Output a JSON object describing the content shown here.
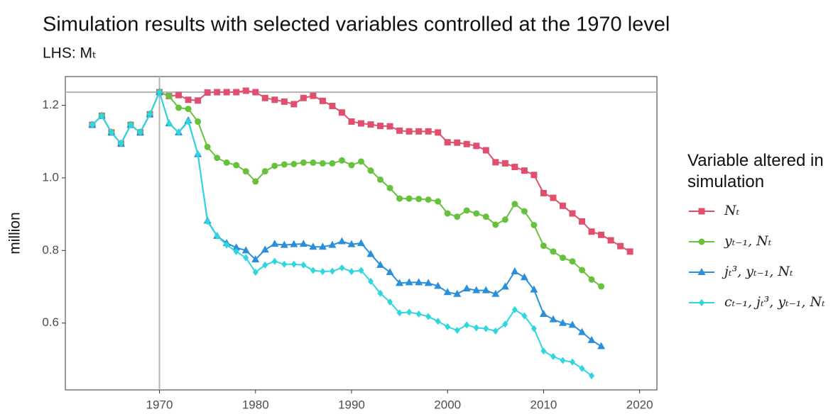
{
  "chart_data": {
    "type": "line",
    "title": "Simulation results with selected variables controlled at the 1970 level",
    "subtitle": "LHS: Mₜ",
    "y_label": "million",
    "legend_title": "Variable altered in simulation",
    "legend_position": "right",
    "grid": false,
    "reference_lines": {
      "x": 1970,
      "y": 1.236
    },
    "x": [
      1963,
      1964,
      1965,
      1966,
      1967,
      1968,
      1969,
      1970,
      1971,
      1972,
      1973,
      1974,
      1975,
      1976,
      1977,
      1978,
      1979,
      1980,
      1981,
      1982,
      1983,
      1984,
      1985,
      1986,
      1987,
      1988,
      1989,
      1990,
      1991,
      1992,
      1993,
      1994,
      1995,
      1996,
      1997,
      1998,
      1999,
      2000,
      2001,
      2002,
      2003,
      2004,
      2005,
      2006,
      2007,
      2008,
      2009,
      2010,
      2011,
      2012,
      2013,
      2014,
      2015,
      2016,
      2017,
      2018,
      2019
    ],
    "xlim": [
      1960.2,
      2021.8
    ],
    "xticks": [
      1970,
      1980,
      1990,
      2000,
      2010,
      2020
    ],
    "ylim": [
      0.416,
      1.279
    ],
    "yticks": [
      0.6,
      0.8,
      {
        "value": 1,
        "label": "1.0"
      },
      1.2
    ],
    "series": [
      {
        "name": "Nₜ",
        "color": "#e0506e",
        "marker": "square",
        "values": [
          1.146,
          1.171,
          1.125,
          1.094,
          1.146,
          1.125,
          1.175,
          1.236,
          1.225,
          1.228,
          1.215,
          1.213,
          1.235,
          1.236,
          1.236,
          1.236,
          1.24,
          1.236,
          1.22,
          1.215,
          1.21,
          1.203,
          1.22,
          1.226,
          1.212,
          1.198,
          1.18,
          1.155,
          1.15,
          1.147,
          1.143,
          1.142,
          1.13,
          1.128,
          1.128,
          1.128,
          1.125,
          1.098,
          1.097,
          1.093,
          1.088,
          1.076,
          1.043,
          1.04,
          1.03,
          1.02,
          1.008,
          0.958,
          0.945,
          0.923,
          0.902,
          0.88,
          0.852,
          0.843,
          0.828,
          0.812,
          0.797
        ]
      },
      {
        "name": "yₜ₋₁, Nₜ",
        "color": "#66c23c",
        "marker": "circle",
        "values": [
          1.146,
          1.171,
          1.125,
          1.094,
          1.146,
          1.125,
          1.175,
          1.236,
          1.225,
          1.193,
          1.19,
          1.155,
          1.085,
          1.055,
          1.042,
          1.035,
          1.018,
          0.99,
          1.018,
          1.033,
          1.037,
          1.038,
          1.042,
          1.042,
          1.04,
          1.04,
          1.048,
          1.035,
          1.045,
          1.02,
          0.995,
          0.972,
          0.943,
          0.943,
          0.942,
          0.94,
          0.935,
          0.902,
          0.893,
          0.91,
          0.902,
          0.893,
          0.871,
          0.885,
          0.928,
          0.908,
          0.87,
          0.813,
          0.797,
          0.78,
          0.77,
          0.746,
          0.72,
          0.701,
          null,
          null,
          null
        ]
      },
      {
        "name": "jₜ³, yₜ₋₁, Nₜ",
        "color": "#2a8fd8",
        "marker": "triangle",
        "values": [
          1.146,
          1.171,
          1.125,
          1.094,
          1.146,
          1.125,
          1.175,
          1.236,
          1.15,
          1.125,
          1.158,
          1.065,
          0.882,
          0.84,
          0.82,
          0.808,
          0.8,
          0.775,
          0.802,
          0.818,
          0.815,
          0.817,
          0.818,
          0.81,
          0.81,
          0.815,
          0.825,
          0.817,
          0.82,
          0.79,
          0.76,
          0.74,
          0.71,
          0.712,
          0.712,
          0.71,
          0.702,
          0.685,
          0.68,
          0.695,
          0.69,
          0.69,
          0.68,
          0.7,
          0.742,
          0.726,
          0.692,
          0.625,
          0.61,
          0.6,
          0.595,
          0.575,
          0.553,
          0.536,
          null,
          null,
          null
        ]
      },
      {
        "name": "cₜ₋₁, jₜ³, yₜ₋₁, Nₜ",
        "color": "#2ed6e0",
        "marker": "diamond",
        "values": [
          1.146,
          1.171,
          1.125,
          1.094,
          1.146,
          1.125,
          1.175,
          1.236,
          1.15,
          1.125,
          1.155,
          1.065,
          0.88,
          0.84,
          0.815,
          0.797,
          0.78,
          0.74,
          0.76,
          0.77,
          0.762,
          0.762,
          0.76,
          0.745,
          0.742,
          0.743,
          0.752,
          0.742,
          0.745,
          0.715,
          0.682,
          0.658,
          0.628,
          0.63,
          0.625,
          0.618,
          0.605,
          0.59,
          0.58,
          0.595,
          0.587,
          0.585,
          0.578,
          0.597,
          0.637,
          0.62,
          0.585,
          0.523,
          0.508,
          0.497,
          0.493,
          0.475,
          0.455,
          null,
          null,
          null,
          null
        ]
      }
    ]
  }
}
